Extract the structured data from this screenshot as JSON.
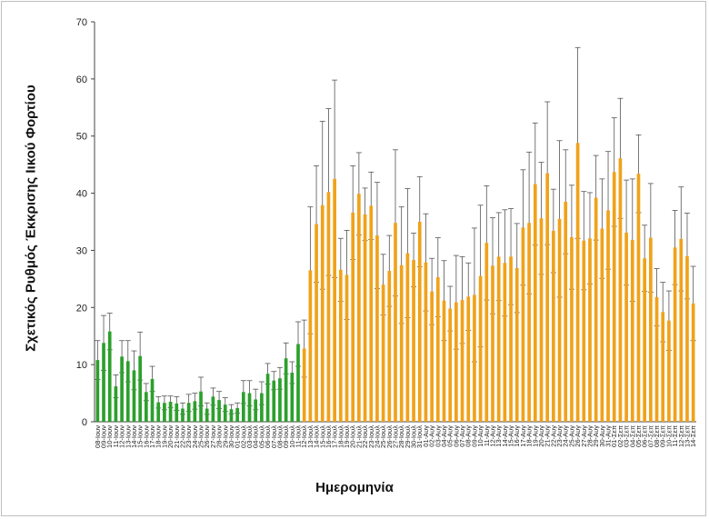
{
  "chart_data": {
    "type": "bar",
    "title": "",
    "xlabel": "Ημερομηνία",
    "ylabel": "Σχετικός Ρυθμός Έκκρισης Ιικού Φορτίου",
    "ylim": [
      0,
      70
    ],
    "yticks": [
      0,
      10,
      20,
      30,
      40,
      50,
      60,
      70
    ],
    "grid": false,
    "legend": "none",
    "colors": {
      "june": "#2ca02c",
      "summer": "#f0a21a",
      "error": "#555555"
    },
    "categories": [
      "08-Ιουν",
      "09-Ιουν",
      "10-Ιουν",
      "11-Ιουν",
      "12-Ιουν",
      "13-Ιουν",
      "14-Ιουν",
      "15-Ιουν",
      "16-Ιουν",
      "17-Ιουν",
      "18-Ιουν",
      "19-Ιουν",
      "20-Ιουν",
      "21-Ιουν",
      "22-Ιουν",
      "23-Ιουν",
      "24-Ιουν",
      "25-Ιουν",
      "26-Ιουν",
      "27-Ιουν",
      "28-Ιουν",
      "29-Ιουν",
      "30-Ιουν",
      "01-Ιουλ",
      "02-Ιουλ",
      "03-Ιουλ",
      "04-Ιουλ",
      "05-Ιουλ",
      "06-Ιουλ",
      "07-Ιουλ",
      "08-Ιουλ",
      "09-Ιουλ",
      "10-Ιουλ",
      "11-Ιουλ",
      "12-Ιουλ",
      "13-Ιουλ",
      "14-Ιουλ",
      "15-Ιουλ",
      "16-Ιουλ",
      "17-Ιουλ",
      "18-Ιουλ",
      "19-Ιουλ",
      "20-Ιουλ",
      "21-Ιουλ",
      "22-Ιουλ",
      "23-Ιουλ",
      "24-Ιουλ",
      "25-Ιουλ",
      "26-Ιουλ",
      "27-Ιουλ",
      "28-Ιουλ",
      "29-Ιουλ",
      "30-Ιουλ",
      "31-Ιουλ",
      "01-Αυγ",
      "02-Αυγ",
      "03-Αυγ",
      "04-Αυγ",
      "05-Αυγ",
      "06-Αυγ",
      "07-Αυγ",
      "08-Αυγ",
      "09-Αυγ",
      "10-Αυγ",
      "11-Αυγ",
      "12-Αυγ",
      "13-Αυγ",
      "14-Αυγ",
      "15-Αυγ",
      "16-Αυγ",
      "17-Αυγ",
      "18-Αυγ",
      "19-Αυγ",
      "20-Αυγ",
      "21-Αυγ",
      "22-Αυγ",
      "23-Αυγ",
      "24-Αυγ",
      "25-Αυγ",
      "26-Αυγ",
      "27-Αυγ",
      "28-Αυγ",
      "29-Αυγ",
      "30-Αυγ",
      "31-Αυγ",
      "01-Σεπ",
      "02-Σεπ",
      "03-Σεπ",
      "04-Σεπ",
      "05-Σεπ",
      "06-Σεπ",
      "07-Σεπ",
      "08-Σεπ",
      "09-Σεπ",
      "10-Σεπ",
      "11-Σεπ",
      "12-Σεπ",
      "13-Σεπ",
      "14-Σεπ"
    ],
    "series": [
      {
        "values": [
          10.8,
          13.8,
          15.8,
          6.2,
          11.4,
          10.6,
          9.0,
          11.5,
          5.2,
          7.5,
          3.4,
          3.3,
          3.5,
          3.2,
          2.3,
          3.3,
          3.6,
          5.3,
          2.3,
          4.4,
          3.8,
          3.0,
          2.2,
          2.4,
          5.2,
          5.0,
          3.9,
          5.0,
          8.4,
          7.2,
          7.6,
          11.1,
          8.6,
          13.6,
          12.8,
          26.5,
          34.6,
          37.9,
          40.2,
          42.5,
          26.6,
          25.7,
          36.6,
          39.9,
          36.3,
          37.8,
          32.6,
          24.0,
          26.4,
          34.8,
          27.4,
          29.5,
          28.3,
          35.0,
          27.9,
          22.8,
          25.3,
          21.2,
          19.8,
          20.9,
          21.3,
          21.9,
          22.2,
          25.5,
          31.3,
          27.3,
          28.9,
          27.8,
          28.9,
          26.9,
          34.0,
          34.8,
          41.6,
          35.6,
          43.5,
          33.4,
          35.5,
          38.5,
          32.3,
          48.8,
          31.7,
          32.1,
          39.2,
          33.8,
          37.0,
          43.7,
          46.1,
          33.1,
          31.8,
          43.4,
          28.6,
          32.2,
          21.8,
          19.2,
          17.7,
          30.5,
          32.0,
          29.0,
          20.7
        ],
        "error": [
          3.4,
          4.8,
          3.2,
          2.0,
          2.8,
          3.6,
          3.4,
          4.2,
          1.5,
          2.2,
          1.0,
          1.2,
          1.0,
          1.2,
          1.0,
          1.5,
          1.4,
          2.5,
          1.0,
          1.5,
          1.5,
          1.2,
          0.8,
          0.9,
          2.0,
          2.2,
          1.8,
          2.0,
          1.8,
          1.6,
          1.9,
          2.7,
          1.9,
          3.9,
          5.0,
          11.1,
          10.2,
          14.7,
          14.6,
          17.3,
          5.5,
          7.8,
          8.2,
          7.2,
          4.6,
          5.9,
          9.3,
          5.3,
          6.2,
          12.8,
          10.2,
          11.3,
          4.7,
          7.9,
          8.5,
          5.8,
          6.9,
          7.0,
          3.9,
          8.2,
          7.6,
          5.9,
          11.7,
          12.4,
          10.0,
          8.4,
          7.7,
          9.3,
          8.4,
          7.8,
          10.1,
          12.4,
          10.7,
          9.8,
          12.5,
          7.3,
          13.7,
          9.1,
          9.1,
          16.7,
          8.6,
          8.0,
          7.4,
          8.7,
          10.3,
          9.5,
          10.5,
          9.2,
          10.7,
          6.8,
          5.8,
          9.5,
          5.0,
          5.2,
          5.2,
          6.5,
          9.1,
          7.5,
          6.5
        ]
      }
    ]
  }
}
